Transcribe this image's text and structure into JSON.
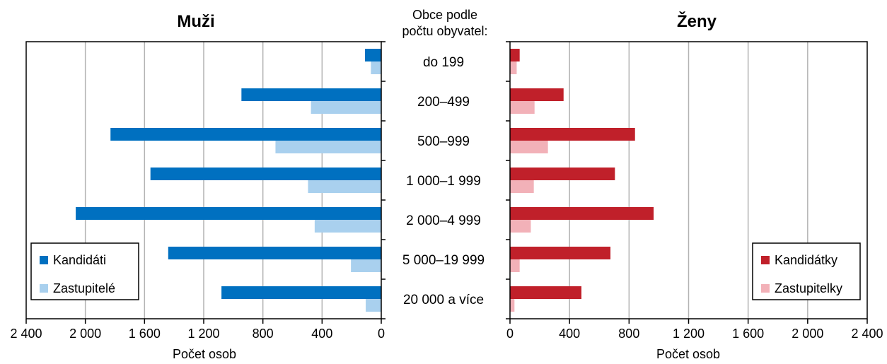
{
  "header": {
    "line1": "Obce podle",
    "line2": "počtu obyvatel:"
  },
  "chart_data": [
    {
      "type": "bar",
      "orientation": "horizontal",
      "direction": "right-to-left",
      "title": "Muži",
      "xlabel": "Počet osob",
      "xlim": [
        0,
        2400
      ],
      "ticks": [
        0,
        400,
        800,
        1200,
        1600,
        2000,
        2400
      ],
      "tick_labels": [
        "0",
        "400",
        "800",
        "1 200",
        "1 600",
        "2 000",
        "2 400"
      ],
      "grid": true,
      "legend_position": "bottom-left",
      "categories": [
        "do 199",
        "200–499",
        "500–999",
        "1 000–1 999",
        "2 000–4 999",
        "5 000–19 999",
        "20 000 a více"
      ],
      "series": [
        {
          "name": "Kandidáti",
          "color": "#0070c0",
          "values": [
            110,
            945,
            1830,
            1560,
            2065,
            1440,
            1080
          ]
        },
        {
          "name": "Zastupitelé",
          "color": "#a9d0ee",
          "values": [
            70,
            475,
            715,
            495,
            450,
            205,
            105
          ]
        }
      ]
    },
    {
      "type": "bar",
      "orientation": "horizontal",
      "direction": "left-to-right",
      "title": "Ženy",
      "xlabel": "Počet osob",
      "xlim": [
        0,
        2400
      ],
      "ticks": [
        0,
        400,
        800,
        1200,
        1600,
        2000,
        2400
      ],
      "tick_labels": [
        "0",
        "400",
        "800",
        "1 200",
        "1 600",
        "2 000",
        "2 400"
      ],
      "grid": true,
      "legend_position": "bottom-right",
      "categories": [
        "do 199",
        "200–499",
        "500–999",
        "1 000–1 999",
        "2 000–4 999",
        "5 000–19 999",
        "20 000 a více"
      ],
      "series": [
        {
          "name": "Kandidátky",
          "color": "#c0202a",
          "values": [
            65,
            360,
            840,
            705,
            965,
            675,
            480
          ]
        },
        {
          "name": "Zastupitelky",
          "color": "#f2b1b8",
          "values": [
            45,
            165,
            255,
            160,
            140,
            65,
            30
          ]
        }
      ]
    }
  ]
}
